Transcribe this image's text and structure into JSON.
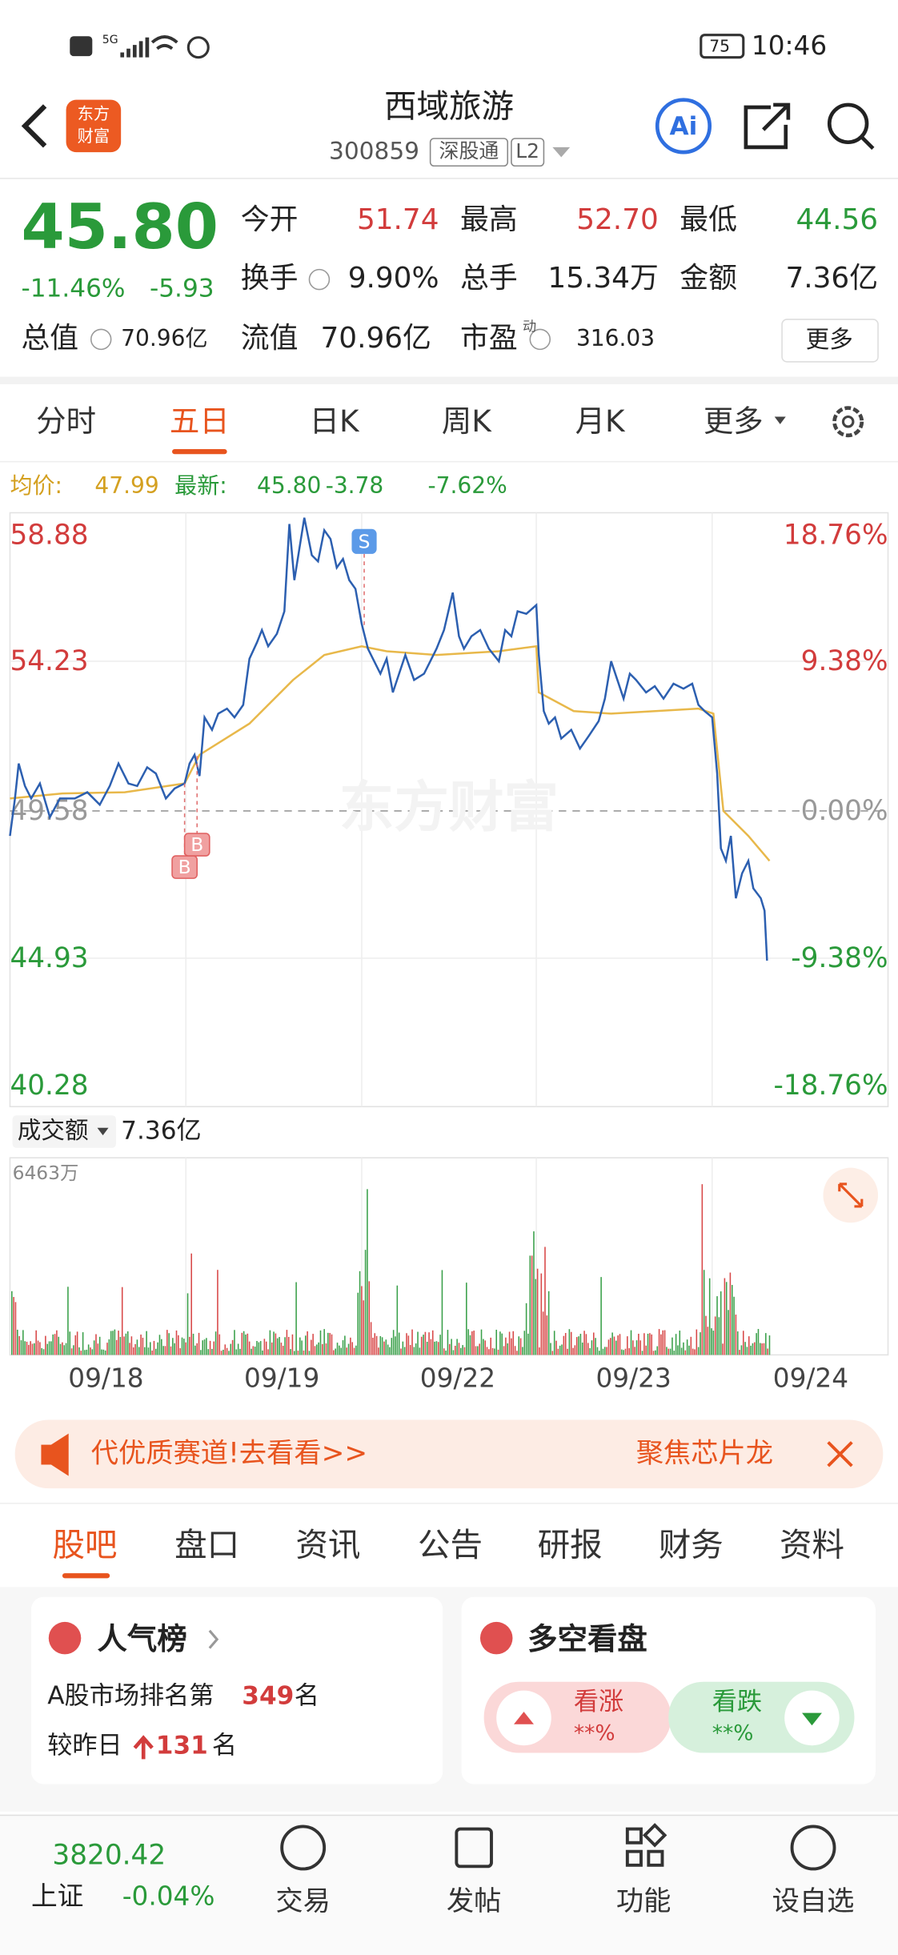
{
  "status": {
    "time": "10:46",
    "battery": "75",
    "network": "5G"
  },
  "header": {
    "logo": [
      "东方",
      "财富"
    ],
    "title": "西域旅游",
    "code": "300859",
    "tag": "深股通",
    "level": "L2",
    "ai": "Ai"
  },
  "quote": {
    "price": "45.80",
    "change_pct": "-11.46%",
    "change": "-5.93",
    "fields": [
      {
        "label": "今开",
        "value": "51.74"
      },
      {
        "label": "最高",
        "value": "52.70"
      },
      {
        "label": "最低",
        "value": "44.56"
      },
      {
        "label": "换手",
        "value": "9.90%"
      },
      {
        "label": "总手",
        "value": "15.34万"
      },
      {
        "label": "金额",
        "value": "7.36亿"
      },
      {
        "label": "总值",
        "value": "70.96亿"
      },
      {
        "label": "流值",
        "value": "70.96亿"
      },
      {
        "label": "市盈",
        "value": "316.03"
      }
    ],
    "pe_mark": "动",
    "more": "更多"
  },
  "tabs": [
    "分时",
    "五日",
    "日K",
    "周K",
    "月K",
    "更多"
  ],
  "info": {
    "avg_label": "均价:",
    "avg": "47.99",
    "last_label": "最新:",
    "last": "45.80",
    "change": "-3.78",
    "change_pct": "-7.62%"
  },
  "chart": {
    "left_axis": [
      "58.88",
      "54.23",
      "49.58",
      "44.93",
      "40.28"
    ],
    "right_axis": [
      "18.76%",
      "9.38%",
      "0.00%",
      "-9.38%",
      "-18.76%"
    ],
    "watermark": "东方财富",
    "markers": [
      "B",
      "B",
      "S"
    ],
    "volume_label": "成交额",
    "volume": "7.36亿",
    "volume_max": "6463万",
    "dates": [
      "09/18",
      "09/19",
      "09/22",
      "09/23",
      "09/24"
    ]
  },
  "banner": {
    "left": "代优质赛道!去看看>>",
    "right": "聚焦芯片龙"
  },
  "section_tabs": [
    "股吧",
    "盘口",
    "资讯",
    "公告",
    "研报",
    "财务",
    "资料"
  ],
  "popularity": {
    "title": "人气榜",
    "rank_prefix": "A股市场排名第",
    "rank": "349",
    "rank_suffix": "名",
    "change_prefix": "较昨日",
    "change": "131",
    "change_suffix": "名"
  },
  "sentiment": {
    "title": "多空看盘",
    "bull": "看涨",
    "bull_value": "**%",
    "bear": "看跌",
    "bear_value": "**%"
  },
  "bottom": {
    "index_value": "3820.42",
    "index_name": "上证",
    "index_change": "-0.04%",
    "nav": [
      "交易",
      "发帖",
      "功能",
      "设自选"
    ]
  }
}
